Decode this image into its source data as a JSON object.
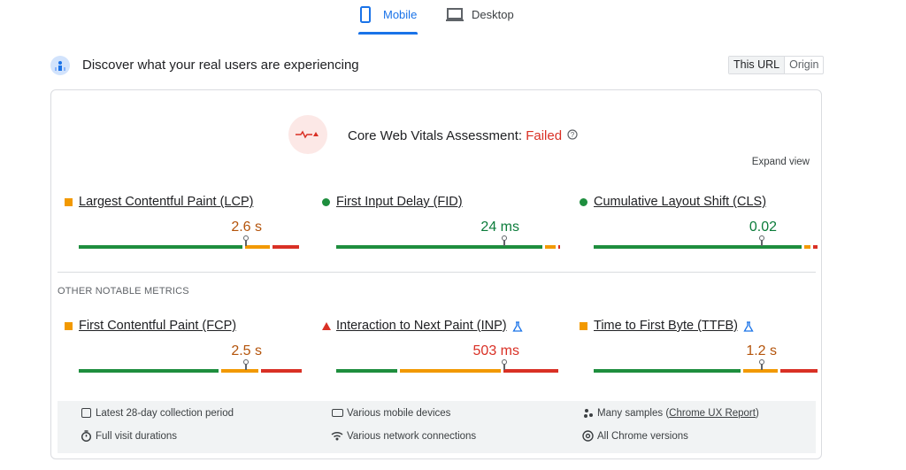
{
  "tabs": {
    "mobile": "Mobile",
    "desktop": "Desktop"
  },
  "header": {
    "title": "Discover what your real users are experiencing",
    "toggle": [
      "This URL",
      "Origin"
    ]
  },
  "assessment": {
    "label": "Core Web Vitals Assessment:",
    "status": "Failed",
    "expand": "Expand view"
  },
  "core_metrics": [
    {
      "name": "Largest Contentful Paint (LCP)",
      "value": "2.6 s"
    },
    {
      "name": "First Input Delay (FID)",
      "value": "24 ms"
    },
    {
      "name": "Cumulative Layout Shift (CLS)",
      "value": "0.02"
    }
  ],
  "other_heading": "OTHER NOTABLE METRICS",
  "other_metrics": [
    {
      "name": "First Contentful Paint (FCP)",
      "value": "2.5 s"
    },
    {
      "name": "Interaction to Next Paint (INP)",
      "value": "503 ms"
    },
    {
      "name": "Time to First Byte (TTFB)",
      "value": "1.2 s"
    }
  ],
  "footer": {
    "period": "Latest 28-day collection period",
    "devices": "Various mobile devices",
    "samples_prefix": "Many samples (",
    "samples_link": "Chrome UX Report",
    "samples_suffix": ")",
    "durations": "Full visit durations",
    "network": "Various network connections",
    "versions": "All Chrome versions"
  }
}
